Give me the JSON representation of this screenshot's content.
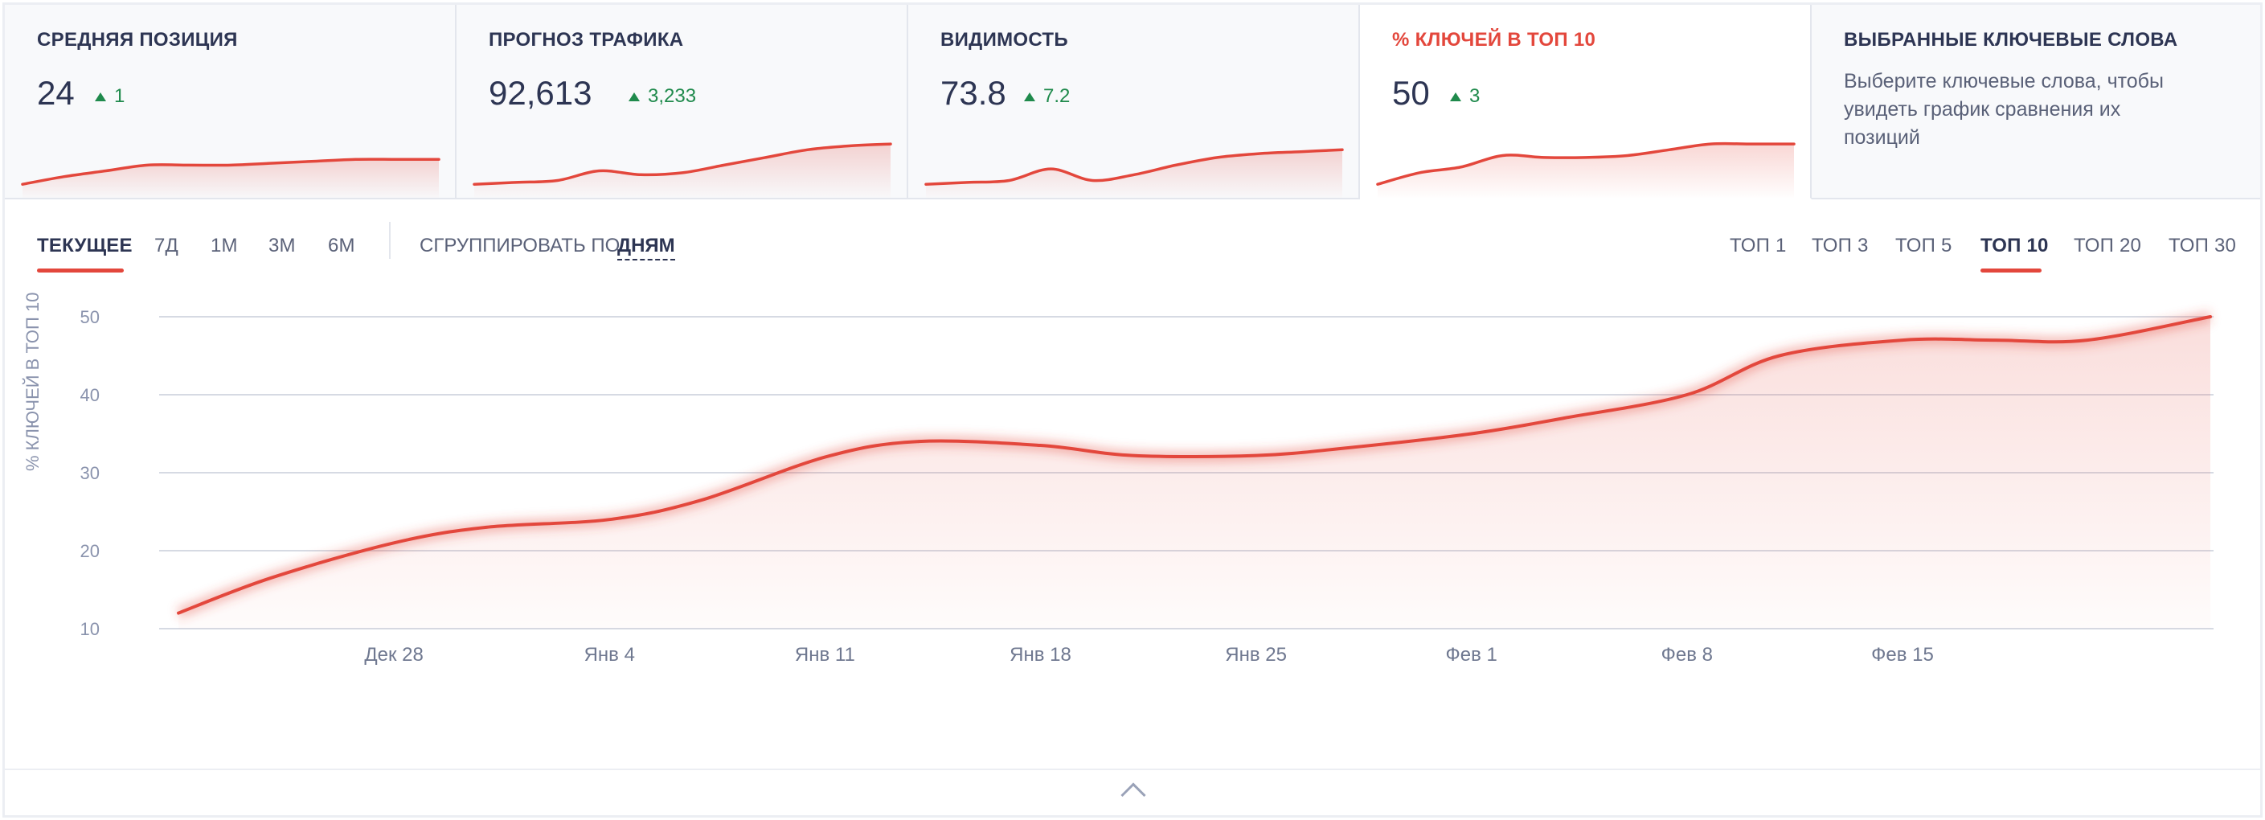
{
  "cards": [
    {
      "title": "СРЕДНЯЯ ПОЗИЦИЯ",
      "value": "24",
      "delta": "1"
    },
    {
      "title": "ПРОГНОЗ ТРАФИКА",
      "value": "92,613",
      "delta": "3,233"
    },
    {
      "title": "ВИДИМОСТЬ",
      "value": "73.8",
      "delta": "7.2"
    },
    {
      "title": "% КЛЮЧЕЙ В ТОП 10",
      "value": "50",
      "delta": "3",
      "active": true
    },
    {
      "title": "ВЫБРАННЫЕ КЛЮЧЕВЫЕ СЛОВА",
      "description": "Выберите ключевые слова, чтобы увидеть график сравнения их позиций"
    }
  ],
  "period_tabs": [
    "ТЕКУЩЕЕ",
    "7Д",
    "1М",
    "3М",
    "6М"
  ],
  "period_active": "ТЕКУЩЕЕ",
  "group_by": {
    "label": "СГРУППИРОВАТЬ ПО:",
    "value": "ДНЯМ"
  },
  "top_tabs": [
    "ТОП 1",
    "ТОП 3",
    "ТОП 5",
    "ТОП 10",
    "ТОП 20",
    "ТОП 30"
  ],
  "top_active": "ТОП 10",
  "colors": {
    "accent": "#e3473c",
    "text": "#2d3553",
    "positive": "#1f8a4c",
    "muted": "#8a93ad"
  },
  "icons": {
    "delta": "triangle-up-icon",
    "collapse": "chevron-up-icon"
  },
  "chart_data": {
    "type": "area",
    "ylabel": "% КЛЮЧЕЙ В ТОП 10",
    "ylim": [
      10,
      50
    ],
    "yticks": [
      10,
      20,
      30,
      40,
      50
    ],
    "xticks": [
      "Дек 28",
      "Янв 4",
      "Янв 11",
      "Янв 18",
      "Янв 25",
      "Фев 1",
      "Фев 8",
      "Фев 15"
    ],
    "x": [
      0,
      3,
      7,
      10,
      14,
      17,
      21,
      24,
      28,
      31,
      35,
      38,
      42,
      45,
      49,
      52,
      56,
      59,
      62,
      66
    ],
    "series": [
      {
        "values": [
          12,
          16.5,
          21,
          23,
          24,
          26.5,
          32,
          34,
          33.5,
          32.2,
          32.2,
          33.2,
          35,
          37,
          40,
          45,
          47,
          47,
          47,
          50
        ]
      }
    ],
    "grid": true
  },
  "sparklines": [
    [
      10,
      14,
      17,
      20,
      20,
      20,
      21,
      22,
      23,
      23,
      23
    ],
    [
      10,
      11,
      12,
      17,
      15,
      16,
      20,
      24,
      28,
      30,
      31
    ],
    [
      10,
      11,
      12,
      18,
      12,
      15,
      20,
      24,
      26,
      27,
      28
    ],
    [
      10,
      16,
      19,
      25,
      24,
      24,
      25,
      28,
      31,
      31,
      31
    ]
  ]
}
